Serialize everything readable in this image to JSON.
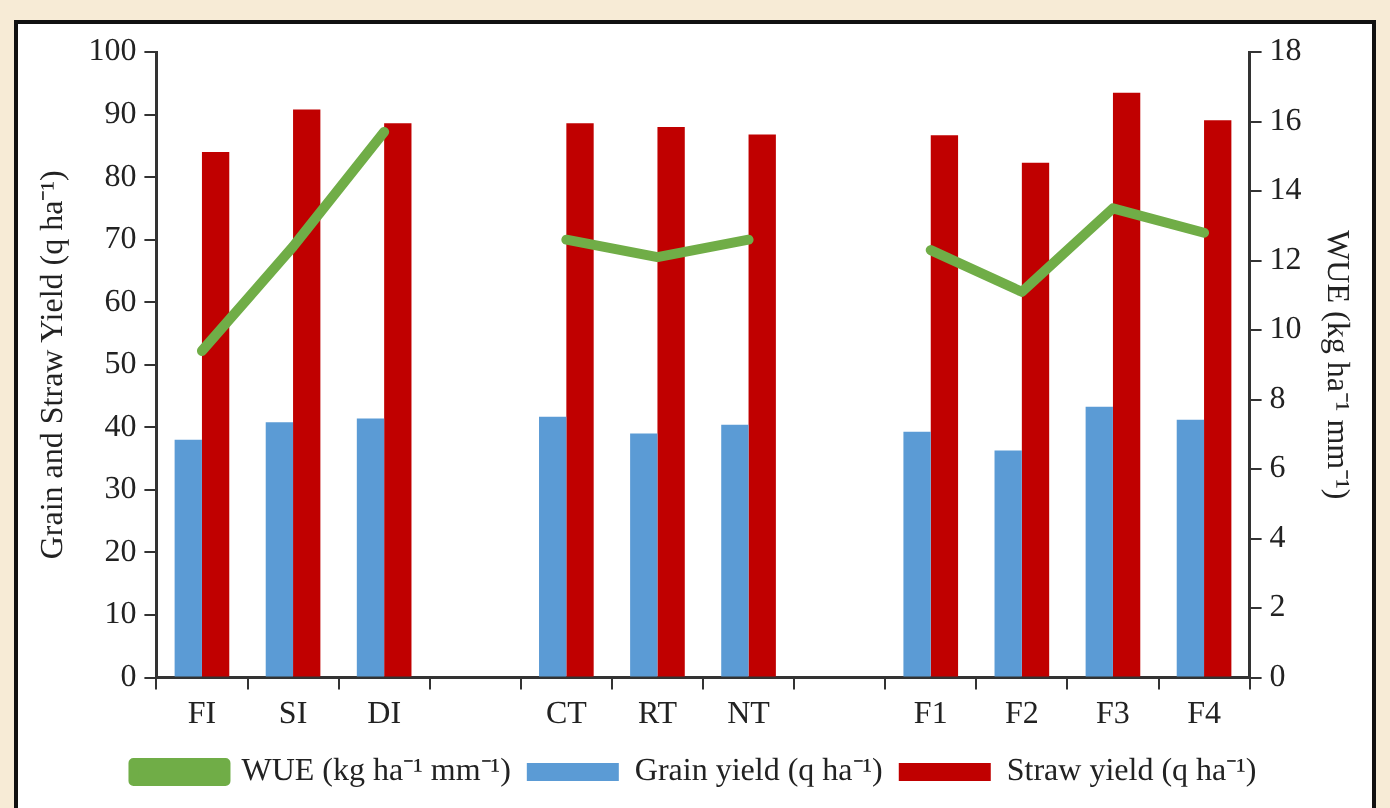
{
  "chart_data": {
    "type": "bar",
    "xlabel": null,
    "ylabel": "Grain and Straw Yield (q ha⁻¹)",
    "y2label": "WUE (kg ha⁻¹ mm⁻¹)",
    "categories": [
      "FI",
      "SI",
      "DI",
      null,
      "CT",
      "RT",
      "NT",
      null,
      "F1",
      "F2",
      "F3",
      "F4"
    ],
    "series": [
      {
        "name": "Grain yield (q ha⁻¹)",
        "color": "#5b9bd5",
        "values": [
          38,
          40.8,
          41.4,
          null,
          41.7,
          39,
          40.4,
          null,
          39.3,
          36.3,
          43.3,
          41.2
        ]
      },
      {
        "name": "Straw yield (q ha⁻¹)",
        "color": "#c00000",
        "values": [
          84,
          90.8,
          88.6,
          null,
          88.6,
          88,
          86.8,
          null,
          86.7,
          82.3,
          93.5,
          89.1
        ]
      },
      {
        "name": "WUE (kg ha⁻¹ mm⁻¹)",
        "type": "line",
        "axis": "y2",
        "color": "#70ad47",
        "values": [
          9.4,
          12.4,
          15.7,
          null,
          12.6,
          12.1,
          12.6,
          null,
          12.3,
          11.1,
          13.5,
          12.8
        ]
      }
    ],
    "ylim": [
      0,
      100
    ],
    "yticks": [
      0,
      10,
      20,
      30,
      40,
      50,
      60,
      70,
      80,
      90,
      100
    ],
    "y2lim": [
      0,
      18
    ],
    "y2ticks": [
      0,
      2,
      4,
      6,
      8,
      10,
      12,
      14,
      16,
      18
    ],
    "legend": "bottom",
    "marker": "none",
    "line_style": "solid"
  }
}
